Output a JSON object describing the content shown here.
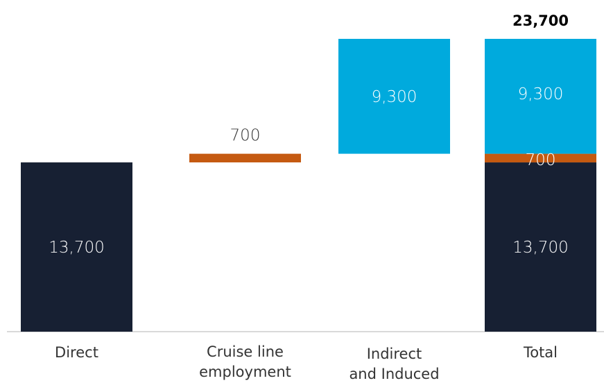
{
  "chart_data": {
    "type": "bar",
    "subtype": "waterfall",
    "categories": [
      [
        "Direct"
      ],
      [
        "Cruise line",
        "employment"
      ],
      [
        "Indirect",
        "and Induced"
      ],
      [
        "Total"
      ]
    ],
    "components": [
      {
        "name": "Direct",
        "value": 13700,
        "label": "13,700",
        "color": "#172033",
        "label_color": "#ffffff"
      },
      {
        "name": "Cruise line employment",
        "value": 700,
        "label": "700",
        "color": "#c55a11",
        "label_color": "#333333"
      },
      {
        "name": "Indirect and Induced",
        "value": 9300,
        "label": "9,300",
        "color": "#00aadd",
        "label_color": "#ffffff"
      }
    ],
    "total": {
      "value": 23700,
      "label": "23,700"
    },
    "ylim": [
      0,
      23700
    ],
    "grid": false
  }
}
